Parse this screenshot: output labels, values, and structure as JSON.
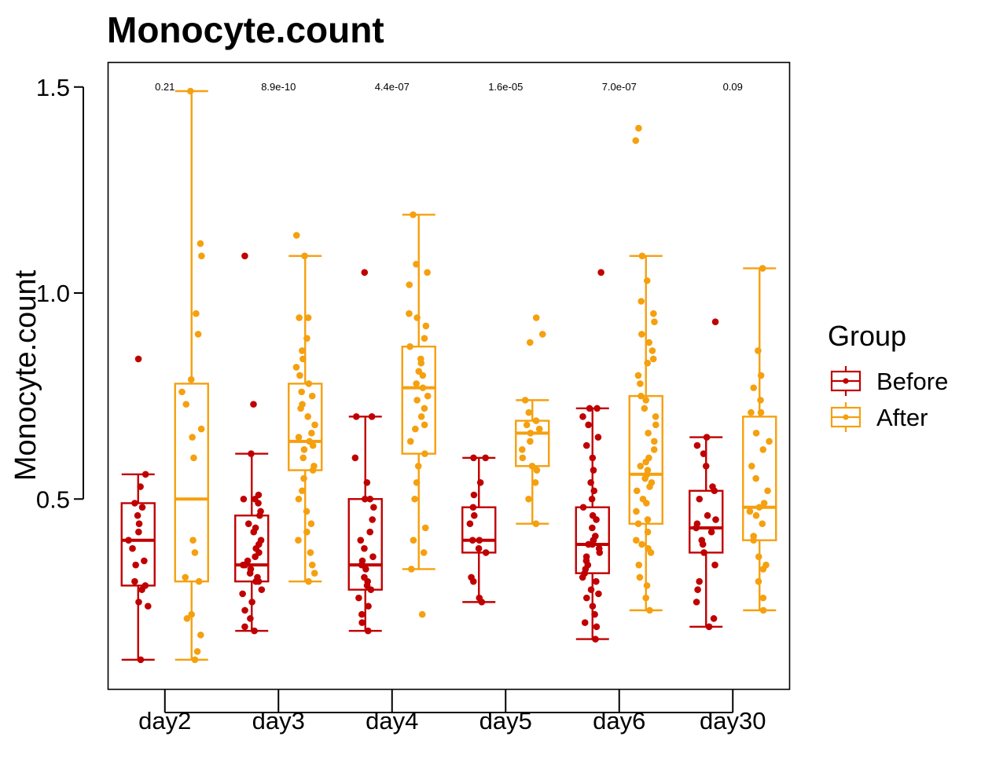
{
  "chart_data": {
    "type": "box",
    "title": "Monocyte.count",
    "xlabel": "",
    "ylabel": "Monocyte.count",
    "ylim": [
      0.0,
      1.555
    ],
    "yticks": [
      0.5,
      1.0,
      1.5
    ],
    "ytick_labels": [
      "0.5",
      "1.0",
      "1.5"
    ],
    "categories": [
      "day2",
      "day3",
      "day4",
      "day5",
      "day6",
      "day30"
    ],
    "legend": {
      "title": "Group",
      "position": "right",
      "entries": [
        "Before",
        "After"
      ]
    },
    "colors": {
      "Before": "#c00000",
      "After": "#f5a00f"
    },
    "grid": false,
    "p_values": [
      "0.21",
      "8.9e-10",
      "4.4e-07",
      "1.6e-05",
      "7.0e-07",
      "0.09"
    ],
    "series": [
      {
        "name": "Before",
        "boxes": [
          {
            "category": "day2",
            "min": 0.11,
            "q1": 0.29,
            "median": 0.4,
            "q3": 0.49,
            "max": 0.56,
            "outliers": [
              0.84
            ],
            "points": [
              0.11,
              0.24,
              0.25,
              0.28,
              0.29,
              0.3,
              0.34,
              0.35,
              0.38,
              0.4,
              0.42,
              0.44,
              0.46,
              0.48,
              0.49,
              0.53,
              0.56,
              0.84
            ]
          },
          {
            "category": "day3",
            "min": 0.18,
            "q1": 0.3,
            "median": 0.34,
            "q3": 0.46,
            "max": 0.61,
            "outliers": [
              0.73,
              1.09
            ],
            "points": [
              0.18,
              0.19,
              0.21,
              0.23,
              0.25,
              0.27,
              0.28,
              0.3,
              0.3,
              0.31,
              0.32,
              0.33,
              0.34,
              0.34,
              0.35,
              0.36,
              0.37,
              0.38,
              0.39,
              0.4,
              0.42,
              0.43,
              0.44,
              0.46,
              0.47,
              0.49,
              0.5,
              0.5,
              0.51,
              0.61,
              0.73,
              1.09
            ]
          },
          {
            "category": "day4",
            "min": 0.18,
            "q1": 0.28,
            "median": 0.34,
            "q3": 0.5,
            "max": 0.7,
            "outliers": [
              1.05
            ],
            "points": [
              0.18,
              0.2,
              0.22,
              0.24,
              0.26,
              0.28,
              0.29,
              0.3,
              0.31,
              0.33,
              0.34,
              0.35,
              0.36,
              0.38,
              0.4,
              0.42,
              0.45,
              0.48,
              0.5,
              0.5,
              0.54,
              0.6,
              0.7,
              0.7,
              1.05
            ]
          },
          {
            "category": "day5",
            "min": 0.25,
            "q1": 0.37,
            "median": 0.4,
            "q3": 0.48,
            "max": 0.6,
            "points": [
              0.25,
              0.26,
              0.3,
              0.31,
              0.37,
              0.38,
              0.4,
              0.4,
              0.44,
              0.46,
              0.48,
              0.51,
              0.54,
              0.6,
              0.6
            ]
          },
          {
            "category": "day6",
            "min": 0.16,
            "q1": 0.32,
            "median": 0.39,
            "q3": 0.48,
            "max": 0.72,
            "outliers": [
              1.05
            ],
            "points": [
              0.16,
              0.19,
              0.2,
              0.22,
              0.24,
              0.26,
              0.27,
              0.28,
              0.3,
              0.31,
              0.32,
              0.33,
              0.34,
              0.35,
              0.36,
              0.37,
              0.38,
              0.39,
              0.39,
              0.4,
              0.4,
              0.41,
              0.43,
              0.45,
              0.46,
              0.48,
              0.5,
              0.52,
              0.54,
              0.57,
              0.6,
              0.63,
              0.65,
              0.68,
              0.7,
              0.72,
              0.72,
              1.05
            ]
          },
          {
            "category": "day30",
            "min": 0.19,
            "q1": 0.37,
            "median": 0.43,
            "q3": 0.52,
            "max": 0.65,
            "outliers": [
              0.93
            ],
            "points": [
              0.19,
              0.21,
              0.25,
              0.28,
              0.3,
              0.34,
              0.37,
              0.39,
              0.4,
              0.42,
              0.43,
              0.44,
              0.45,
              0.46,
              0.5,
              0.52,
              0.53,
              0.58,
              0.61,
              0.63,
              0.65,
              0.93
            ]
          }
        ]
      },
      {
        "name": "After",
        "boxes": [
          {
            "category": "day2",
            "min": 0.11,
            "q1": 0.3,
            "median": 0.5,
            "q3": 0.78,
            "max": 1.49,
            "points": [
              0.11,
              0.13,
              0.17,
              0.21,
              0.22,
              0.3,
              0.31,
              0.37,
              0.4,
              0.6,
              0.65,
              0.67,
              0.73,
              0.76,
              0.79,
              0.9,
              0.95,
              1.09,
              1.12,
              1.49
            ]
          },
          {
            "category": "day3",
            "min": 0.3,
            "q1": 0.57,
            "median": 0.64,
            "q3": 0.78,
            "max": 1.09,
            "outliers": [
              1.14
            ],
            "points": [
              0.3,
              0.32,
              0.34,
              0.37,
              0.4,
              0.42,
              0.44,
              0.47,
              0.5,
              0.52,
              0.55,
              0.57,
              0.58,
              0.6,
              0.62,
              0.63,
              0.64,
              0.65,
              0.66,
              0.68,
              0.7,
              0.72,
              0.73,
              0.75,
              0.76,
              0.78,
              0.8,
              0.82,
              0.84,
              0.86,
              0.89,
              0.94,
              0.94,
              1.09,
              1.14
            ]
          },
          {
            "category": "day4",
            "min": 0.33,
            "q1": 0.61,
            "median": 0.77,
            "q3": 0.87,
            "max": 1.19,
            "outliers": [
              0.22
            ],
            "points": [
              0.22,
              0.33,
              0.37,
              0.4,
              0.43,
              0.5,
              0.54,
              0.58,
              0.61,
              0.64,
              0.67,
              0.68,
              0.7,
              0.72,
              0.74,
              0.75,
              0.77,
              0.78,
              0.8,
              0.81,
              0.83,
              0.84,
              0.87,
              0.89,
              0.92,
              0.94,
              0.95,
              1.02,
              1.05,
              1.07,
              1.19
            ]
          },
          {
            "category": "day5",
            "min": 0.44,
            "q1": 0.58,
            "median": 0.66,
            "q3": 0.69,
            "max": 0.74,
            "outliers": [
              0.88,
              0.9,
              0.94
            ],
            "points": [
              0.44,
              0.5,
              0.54,
              0.57,
              0.58,
              0.6,
              0.62,
              0.64,
              0.66,
              0.67,
              0.68,
              0.69,
              0.71,
              0.74,
              0.88,
              0.9,
              0.94
            ]
          },
          {
            "category": "day6",
            "min": 0.23,
            "q1": 0.44,
            "median": 0.56,
            "q3": 0.75,
            "max": 1.09,
            "outliers": [
              1.37,
              1.4
            ],
            "points": [
              0.23,
              0.26,
              0.29,
              0.31,
              0.34,
              0.37,
              0.38,
              0.39,
              0.4,
              0.42,
              0.44,
              0.45,
              0.47,
              0.49,
              0.5,
              0.52,
              0.53,
              0.54,
              0.55,
              0.56,
              0.57,
              0.58,
              0.59,
              0.6,
              0.62,
              0.64,
              0.66,
              0.68,
              0.7,
              0.72,
              0.74,
              0.75,
              0.78,
              0.8,
              0.83,
              0.84,
              0.86,
              0.88,
              0.9,
              0.93,
              0.95,
              0.98,
              1.03,
              1.09,
              1.37,
              1.4
            ]
          },
          {
            "category": "day30",
            "min": 0.23,
            "q1": 0.4,
            "median": 0.48,
            "q3": 0.7,
            "max": 1.06,
            "points": [
              0.23,
              0.26,
              0.3,
              0.33,
              0.34,
              0.36,
              0.4,
              0.41,
              0.44,
              0.46,
              0.47,
              0.48,
              0.49,
              0.52,
              0.55,
              0.58,
              0.62,
              0.64,
              0.66,
              0.71,
              0.71,
              0.74,
              0.77,
              0.8,
              0.86,
              1.06
            ]
          }
        ]
      }
    ]
  }
}
